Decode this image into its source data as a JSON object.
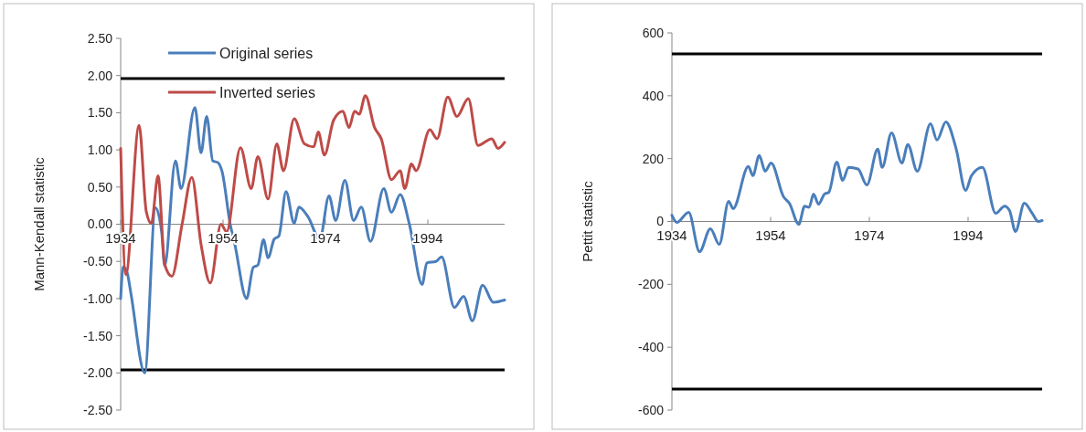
{
  "chart_data": [
    {
      "type": "line",
      "ylabel": "Mann-Kendall statistic",
      "xlim": [
        1934,
        2009
      ],
      "xticks": [
        1934,
        1954,
        1974,
        1994
      ],
      "ylim": [
        -2.5,
        2.5
      ],
      "yticks": [
        {
          "value": -2.5,
          "label": "-2.50"
        },
        {
          "value": -2,
          "label": "-2.00"
        },
        {
          "value": -1.5,
          "label": "-1.50"
        },
        {
          "value": -1,
          "label": "-1.00"
        },
        {
          "value": -0.5,
          "label": "-0.50"
        },
        {
          "value": 0,
          "label": "0.00"
        },
        {
          "value": 0.5,
          "label": "0.50"
        },
        {
          "value": 1,
          "label": "1.00"
        },
        {
          "value": 1.5,
          "label": "1.50"
        },
        {
          "value": 2,
          "label": "2.00"
        },
        {
          "value": 2.5,
          "label": "2.50"
        }
      ],
      "grid": false,
      "legend": "top left",
      "marker": "none",
      "line_style": "solid",
      "ref_lines": [
        {
          "axis": "y",
          "value": 1.96,
          "color": "#000000"
        },
        {
          "axis": "y",
          "value": -1.96,
          "color": "#000000"
        }
      ],
      "series": [
        {
          "name": "Original series",
          "color": "#4a7ebb",
          "x": [
            1934,
            1934.5,
            1935.3,
            1936,
            1938.7,
            1940.8,
            1942,
            1942.6,
            1944.7,
            1945.8,
            1948.5,
            1949.7,
            1950.8,
            1952,
            1953,
            1953.8,
            1955.4,
            1956.3,
            1958.6,
            1959.9,
            1960.8,
            1961.9,
            1962.8,
            1964,
            1964.9,
            1966.3,
            1967.9,
            1968.8,
            1970.6,
            1972.9,
            1974.7,
            1976,
            1977.8,
            1979.5,
            1981,
            1982.8,
            1985.4,
            1986.9,
            1988.6,
            1990.4,
            1992.9,
            1993.8,
            1995.6,
            1996.7,
            1999.2,
            2001,
            2002.7,
            2004.7,
            2006.8,
            2009
          ],
          "values": [
            -1.0,
            -0.57,
            -0.66,
            -0.93,
            -2.0,
            0.22,
            -0.1,
            -0.56,
            0.85,
            0.48,
            1.57,
            0.96,
            1.45,
            0.85,
            0.83,
            0.71,
            0.0,
            -0.27,
            -1.0,
            -0.58,
            -0.55,
            -0.21,
            -0.45,
            -0.2,
            -0.16,
            0.44,
            0.01,
            0.23,
            0.1,
            -0.2,
            0.38,
            0.05,
            0.59,
            0.05,
            0.23,
            -0.23,
            0.48,
            0.16,
            0.4,
            0.0,
            -0.81,
            -0.52,
            -0.5,
            -0.44,
            -1.12,
            -0.97,
            -1.3,
            -0.82,
            -1.05,
            -1.02
          ]
        },
        {
          "name": "Inverted series",
          "color": "#be4b48",
          "x": [
            1934,
            1935,
            1937.6,
            1939,
            1940,
            1941.3,
            1942.6,
            1944,
            1946,
            1947.9,
            1949.7,
            1951.5,
            1953.6,
            1954.7,
            1957.4,
            1959.5,
            1960.8,
            1962.8,
            1964.5,
            1965.8,
            1967.9,
            1969.9,
            1971.7,
            1972.6,
            1973.8,
            1975.6,
            1977.4,
            1978.6,
            1979.7,
            1980.6,
            1981.8,
            1983.6,
            1984.9,
            1986.9,
            1988.6,
            1989.5,
            1990.8,
            1991.7,
            1994.4,
            1995.8,
            1997.9,
            1999.7,
            2001.9,
            2003.8,
            2006.5,
            2007.7,
            2009
          ],
          "values": [
            1.02,
            -0.68,
            1.33,
            0.17,
            0.01,
            0.65,
            -0.54,
            -0.7,
            0.0,
            0.63,
            -0.27,
            -0.79,
            0.0,
            -0.1,
            1.03,
            0.48,
            0.91,
            0.34,
            1.08,
            0.72,
            1.42,
            1.08,
            1.04,
            1.24,
            0.93,
            1.4,
            1.52,
            1.3,
            1.52,
            1.48,
            1.73,
            1.3,
            1.15,
            0.6,
            0.72,
            0.48,
            0.81,
            0.72,
            1.27,
            1.15,
            1.71,
            1.45,
            1.69,
            1.06,
            1.15,
            1.02,
            1.1
          ]
        }
      ]
    },
    {
      "type": "line",
      "ylabel": "Pettit statistic",
      "xlim": [
        1934,
        2009
      ],
      "xticks": [
        1934,
        1954,
        1974,
        1994
      ],
      "ylim": [
        -600,
        600
      ],
      "yticks": [
        -600,
        -400,
        -200,
        0,
        200,
        400,
        600
      ],
      "grid": false,
      "legend": false,
      "marker": "none",
      "line_style": "solid",
      "ref_lines": [
        {
          "axis": "y",
          "value": 533,
          "color": "#000000"
        },
        {
          "axis": "y",
          "value": -533,
          "color": "#000000"
        }
      ],
      "series": [
        {
          "color": "#4a7ebb",
          "x": [
            1934,
            1935,
            1937.4,
            1939.6,
            1941.8,
            1943.6,
            1945.5,
            1946.4,
            1949.5,
            1950.4,
            1951.7,
            1952.9,
            1954.1,
            1956.6,
            1957.8,
            1959.7,
            1960.9,
            1961.8,
            1962.7,
            1963.7,
            1964.9,
            1965.8,
            1967.4,
            1968.6,
            1969.8,
            1971.7,
            1973.5,
            1975.7,
            1976.6,
            1978.5,
            1980.6,
            1981.8,
            1983.7,
            1986.4,
            1987.7,
            1989.5,
            1991.6,
            1993.5,
            1994.7,
            1996.9,
            1999.6,
            2001.4,
            2002.4,
            2003.6,
            2005.4,
            2007,
            2008.2,
            2009
          ],
          "values": [
            20,
            -3,
            29,
            -96,
            -23,
            -73,
            64,
            41,
            175,
            146,
            210,
            160,
            186,
            79,
            58,
            -9,
            49,
            45,
            87,
            55,
            87,
            93,
            189,
            131,
            172,
            167,
            116,
            230,
            172,
            282,
            186,
            245,
            160,
            311,
            259,
            317,
            230,
            99,
            146,
            172,
            26,
            49,
            35,
            -32,
            58,
            26,
            0,
            3
          ]
        }
      ]
    }
  ]
}
